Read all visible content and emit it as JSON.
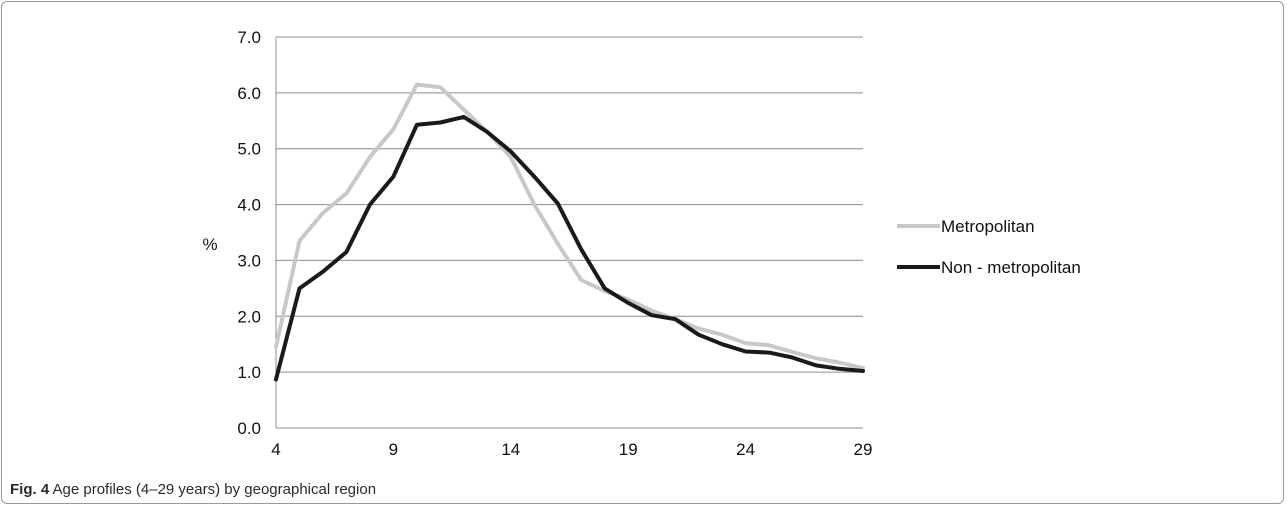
{
  "chart_data": {
    "type": "line",
    "title": "",
    "xlabel": "",
    "ylabel": "%",
    "xlim": [
      4,
      29
    ],
    "ylim": [
      0,
      7
    ],
    "x_ticks": [
      "4",
      "9",
      "14",
      "19",
      "24",
      "29"
    ],
    "y_ticks": [
      "0.0",
      "1.0",
      "2.0",
      "3.0",
      "4.0",
      "5.0",
      "6.0",
      "7.0"
    ],
    "grid": true,
    "legend_position": "right",
    "x": [
      4,
      5,
      6,
      7,
      8,
      9,
      10,
      11,
      12,
      13,
      14,
      15,
      16,
      17,
      18,
      19,
      20,
      21,
      22,
      23,
      24,
      25,
      26,
      27,
      28,
      29
    ],
    "series": [
      {
        "name": "Metropolitan",
        "color": "#c8c8c8",
        "values": [
          1.45,
          3.35,
          3.85,
          4.2,
          4.85,
          5.35,
          6.15,
          6.1,
          5.7,
          5.3,
          4.85,
          4.0,
          3.3,
          2.65,
          2.45,
          2.3,
          2.1,
          1.95,
          1.78,
          1.67,
          1.52,
          1.48,
          1.36,
          1.25,
          1.17,
          1.07
        ]
      },
      {
        "name": "Non - metropolitan",
        "color": "#1a1a1a",
        "values": [
          0.87,
          2.5,
          2.8,
          3.15,
          4.0,
          4.5,
          5.43,
          5.47,
          5.57,
          5.3,
          4.95,
          4.5,
          4.02,
          3.2,
          2.5,
          2.24,
          2.02,
          1.95,
          1.67,
          1.5,
          1.37,
          1.35,
          1.26,
          1.12,
          1.06,
          1.02
        ]
      }
    ]
  },
  "caption": {
    "label": "Fig. 4",
    "text": "Age profiles (4–29 years) by geographical region"
  }
}
